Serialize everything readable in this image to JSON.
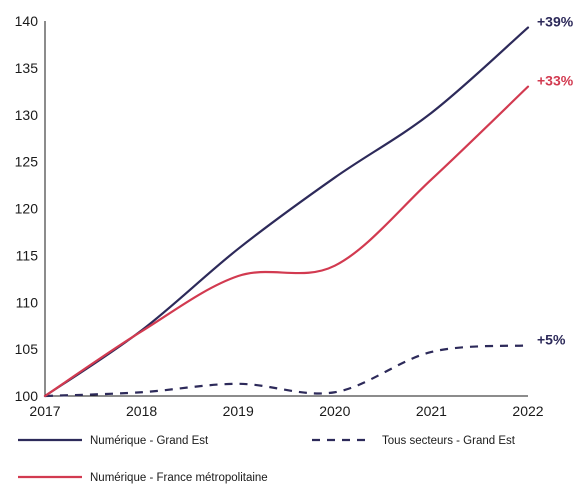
{
  "chart_data": {
    "type": "line",
    "title": "",
    "xlabel": "",
    "ylabel": "",
    "x": [
      "2017",
      "2018",
      "2019",
      "2020",
      "2021",
      "2022"
    ],
    "ylim": [
      100,
      140
    ],
    "yticks": [
      100,
      105,
      110,
      115,
      120,
      125,
      130,
      135,
      140
    ],
    "grid": false,
    "legend_placement": "bottom",
    "series": [
      {
        "name": "Numérique - Grand Est",
        "values": [
          100,
          107,
          115.7,
          123.3,
          130.2,
          139.3
        ],
        "color": "#2d2a5a",
        "style": "solid",
        "end_label": "+39%"
      },
      {
        "name": "Tous secteurs - Grand Est",
        "values": [
          100,
          100.4,
          101.3,
          100.4,
          104.7,
          105.4
        ],
        "color": "#2d2a5a",
        "style": "dashed",
        "end_label": "+5%"
      },
      {
        "name": "Numérique - France métropolitaine",
        "values": [
          100,
          106.9,
          112.8,
          113.9,
          123.1,
          133
        ],
        "color": "#d23a50",
        "style": "solid",
        "end_label": "+33%"
      }
    ]
  }
}
